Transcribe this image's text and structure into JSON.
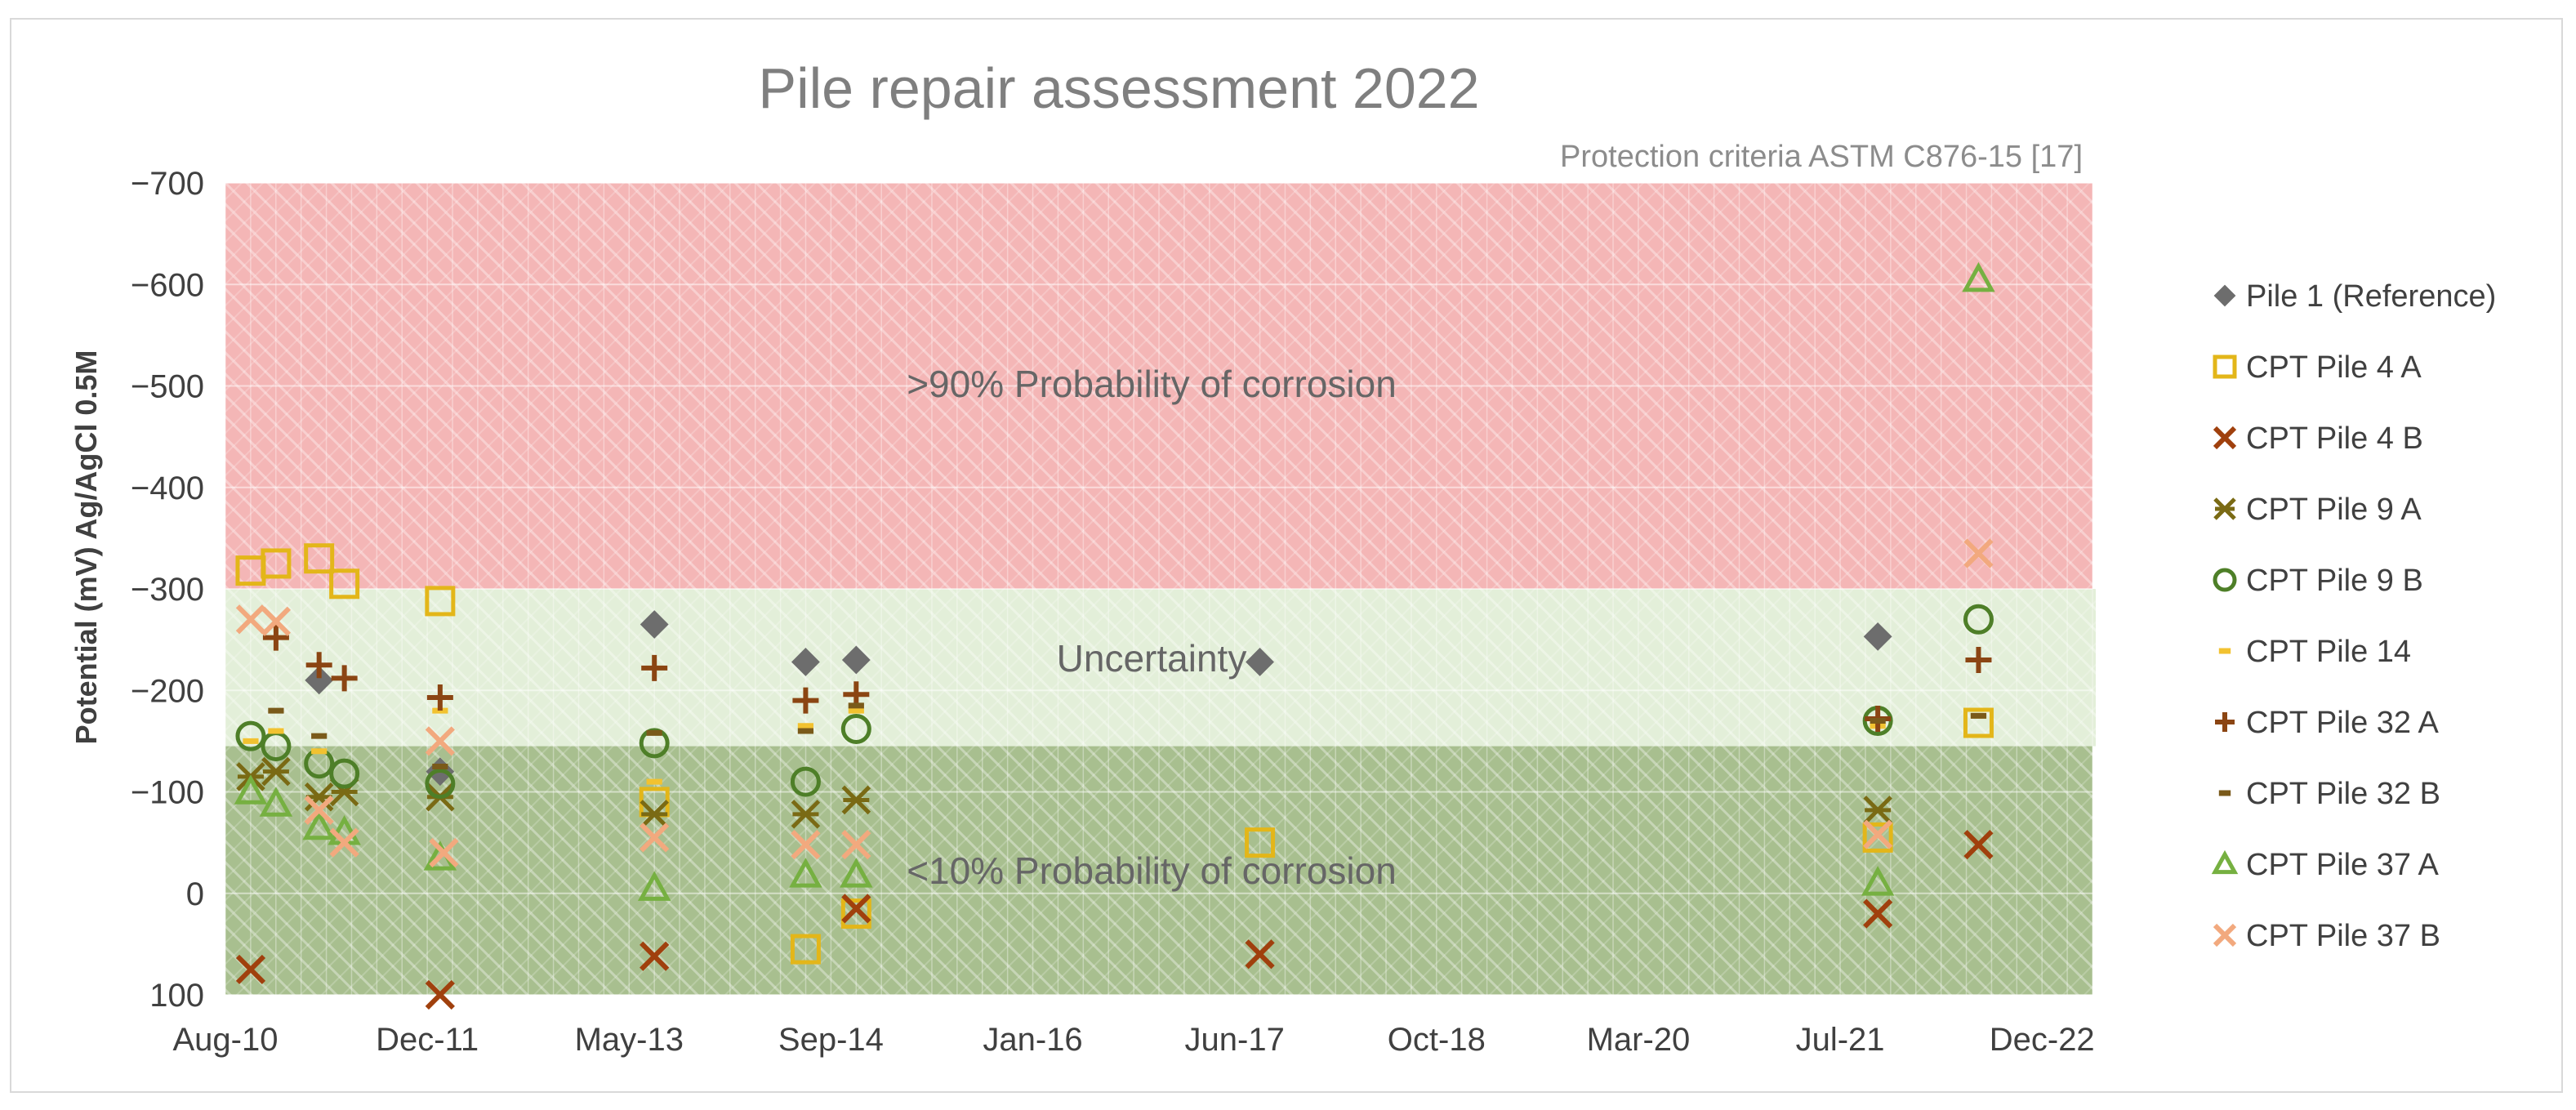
{
  "chart_data": {
    "type": "scatter",
    "title": "Pile repair assessment 2022",
    "subtitle": "Protection criteria ASTM C876-15 [17]",
    "xlabel": "",
    "ylabel": "Potential (mV) Ag/AgCl 0.5M",
    "x_ticks": [
      "Aug-10",
      "Dec-11",
      "May-13",
      "Sep-14",
      "Jan-16",
      "Jun-17",
      "Oct-18",
      "Mar-20",
      "Jul-21",
      "Dec-22"
    ],
    "y_ticks": [
      "−700",
      "−600",
      "−500",
      "−400",
      "−300",
      "−200",
      "−100",
      "0",
      "100"
    ],
    "y_tick_values": [
      -700,
      -600,
      -500,
      -400,
      -300,
      -200,
      -100,
      0,
      100
    ],
    "ylim": [
      -700,
      100
    ],
    "y_inverted": true,
    "zones": [
      {
        "label": ">90% Probability of corrosion",
        "from": -700,
        "to": -300,
        "color": "#f4b6b6"
      },
      {
        "label": "Uncertainty",
        "from": -300,
        "to": -145,
        "color": "#e3efd9"
      },
      {
        "label": "<10% Probability of corrosion",
        "from": -145,
        "to": 100,
        "color": "#a8bf8f"
      }
    ],
    "legend_position": "right",
    "series": [
      {
        "name": "Pile 1 (Reference)",
        "marker": "diamond",
        "color": "#6d6d6d",
        "points": [
          [
            "2011-03-15",
            -210
          ],
          [
            "2012-01-01",
            -120
          ],
          [
            "2013-06-01",
            -265
          ],
          [
            "2014-06-01",
            -228
          ],
          [
            "2014-10-01",
            -230
          ],
          [
            "2017-06-01",
            -228
          ],
          [
            "2021-07-01",
            -253
          ]
        ]
      },
      {
        "name": "CPT Pile 4 A",
        "marker": "square",
        "color": "#e3b619",
        "points": [
          [
            "2010-10-01",
            -318
          ],
          [
            "2010-12-01",
            -325
          ],
          [
            "2011-03-15",
            -330
          ],
          [
            "2011-05-15",
            -305
          ],
          [
            "2012-01-01",
            -288
          ],
          [
            "2013-06-01",
            -90
          ],
          [
            "2014-06-01",
            55
          ],
          [
            "2014-10-01",
            20
          ],
          [
            "2017-06-01",
            -50
          ],
          [
            "2021-07-01",
            -55
          ],
          [
            "2022-03-01",
            -168
          ]
        ]
      },
      {
        "name": "CPT Pile 4 B",
        "marker": "x",
        "color": "#a0400d",
        "points": [
          [
            "2010-10-01",
            75
          ],
          [
            "2012-01-01",
            100
          ],
          [
            "2013-06-01",
            62
          ],
          [
            "2014-10-01",
            15
          ],
          [
            "2017-06-01",
            60
          ],
          [
            "2021-07-01",
            20
          ],
          [
            "2022-03-01",
            -48
          ]
        ]
      },
      {
        "name": "CPT Pile 9 A",
        "marker": "star",
        "color": "#7a6a14",
        "points": [
          [
            "2010-10-01",
            -115
          ],
          [
            "2010-12-01",
            -120
          ],
          [
            "2011-03-15",
            -95
          ],
          [
            "2011-05-15",
            -100
          ],
          [
            "2012-01-01",
            -95
          ],
          [
            "2013-06-01",
            -78
          ],
          [
            "2014-06-01",
            -78
          ],
          [
            "2014-10-01",
            -92
          ],
          [
            "2021-07-01",
            -82
          ]
        ]
      },
      {
        "name": "CPT Pile 9 B",
        "marker": "circle",
        "color": "#4e7f28",
        "points": [
          [
            "2010-10-01",
            -155
          ],
          [
            "2010-12-01",
            -145
          ],
          [
            "2011-03-15",
            -128
          ],
          [
            "2011-05-15",
            -118
          ],
          [
            "2012-01-01",
            -108
          ],
          [
            "2013-06-01",
            -148
          ],
          [
            "2014-06-01",
            -110
          ],
          [
            "2014-10-01",
            -162
          ],
          [
            "2021-07-01",
            -170
          ],
          [
            "2022-03-01",
            -270
          ]
        ]
      },
      {
        "name": "CPT Pile 14",
        "marker": "dash",
        "color": "#f2c230",
        "points": [
          [
            "2010-10-01",
            -150
          ],
          [
            "2010-12-01",
            -160
          ],
          [
            "2011-03-15",
            -140
          ],
          [
            "2012-01-01",
            -180
          ],
          [
            "2013-06-01",
            -110
          ],
          [
            "2014-06-01",
            -165
          ],
          [
            "2014-10-01",
            -180
          ],
          [
            "2021-07-01",
            -165
          ],
          [
            "2022-03-01",
            -175
          ]
        ]
      },
      {
        "name": "CPT Pile 32 A",
        "marker": "plus",
        "color": "#8b4513",
        "points": [
          [
            "2010-12-01",
            -252
          ],
          [
            "2011-03-15",
            -225
          ],
          [
            "2011-05-15",
            -212
          ],
          [
            "2012-01-01",
            -193
          ],
          [
            "2013-06-01",
            -222
          ],
          [
            "2014-06-01",
            -190
          ],
          [
            "2014-10-01",
            -196
          ],
          [
            "2021-07-01",
            -172
          ],
          [
            "2022-03-01",
            -230
          ]
        ]
      },
      {
        "name": "CPT Pile 32 B",
        "marker": "dash",
        "color": "#7a5a1a",
        "points": [
          [
            "2010-12-01",
            -180
          ],
          [
            "2011-03-15",
            -155
          ],
          [
            "2012-01-01",
            -125
          ],
          [
            "2013-06-01",
            -158
          ],
          [
            "2014-06-01",
            -160
          ],
          [
            "2014-10-01",
            -185
          ],
          [
            "2021-07-01",
            -170
          ],
          [
            "2022-03-01",
            -175
          ]
        ]
      },
      {
        "name": "CPT Pile 37 A",
        "marker": "triangle",
        "color": "#76b041",
        "points": [
          [
            "2010-10-01",
            -100
          ],
          [
            "2010-12-01",
            -88
          ],
          [
            "2011-03-15",
            -65
          ],
          [
            "2011-05-15",
            -60
          ],
          [
            "2012-01-01",
            -35
          ],
          [
            "2013-06-01",
            -5
          ],
          [
            "2014-06-01",
            -18
          ],
          [
            "2014-10-01",
            -18
          ],
          [
            "2021-07-01",
            -10
          ],
          [
            "2022-03-01",
            -605
          ]
        ]
      },
      {
        "name": "CPT Pile 37 B",
        "marker": "x",
        "color": "#f2a97e",
        "points": [
          [
            "2010-10-01",
            -270
          ],
          [
            "2010-12-01",
            -268
          ],
          [
            "2011-03-15",
            -82
          ],
          [
            "2011-05-15",
            -50
          ],
          [
            "2012-01-01",
            -150
          ],
          [
            "2012-01-10",
            -40
          ],
          [
            "2013-06-01",
            -55
          ],
          [
            "2014-06-01",
            -48
          ],
          [
            "2014-10-01",
            -48
          ],
          [
            "2021-07-01",
            -58
          ],
          [
            "2022-03-01",
            -335
          ]
        ]
      }
    ]
  }
}
